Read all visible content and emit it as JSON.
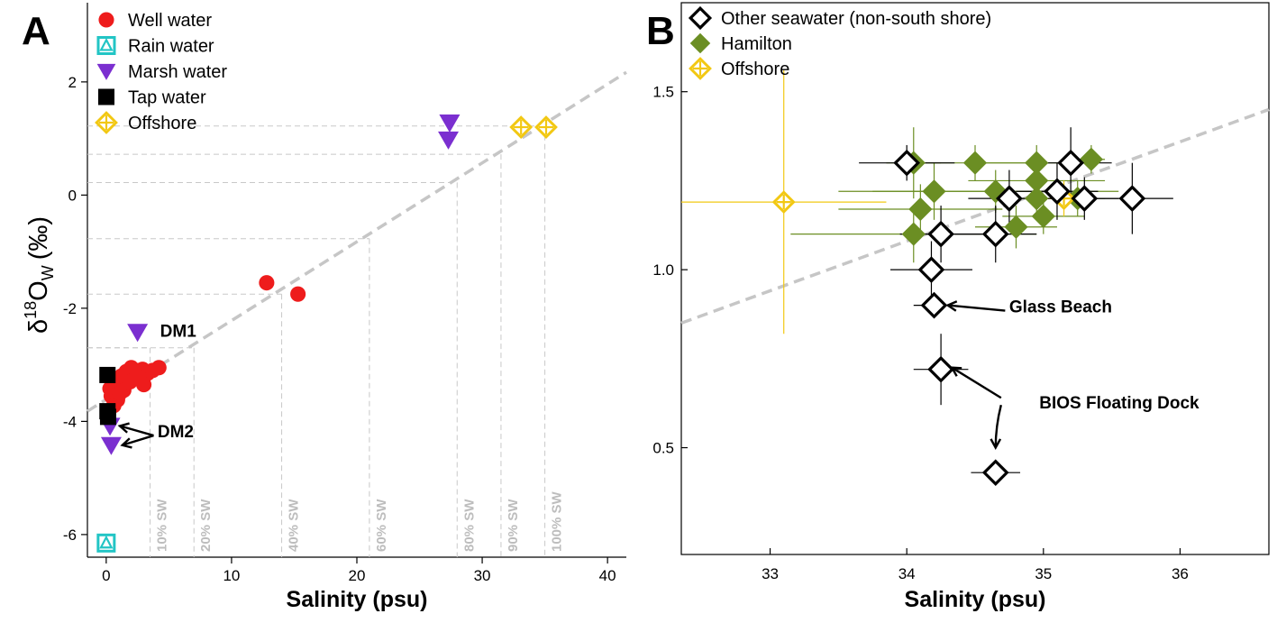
{
  "chart_data": [
    {
      "panel": "A",
      "type": "scatter",
      "xlabel": "Salinity (psu)",
      "ylabel_main": "δ",
      "ylabel_sup": "18",
      "ylabel_O": "O",
      "ylabel_sub": "W",
      "ylabel_unit": "(‰)",
      "xlim": [
        -1.5,
        41.5
      ],
      "ylim": [
        -6.4,
        3.4
      ],
      "xticks": [
        0,
        10,
        20,
        30,
        40
      ],
      "yticks": [
        -6,
        -4,
        -2,
        0,
        2
      ],
      "xtick_labels": [
        "0",
        "10",
        "20",
        "30",
        "40"
      ],
      "ytick_labels": [
        "-6",
        "-4",
        "-2",
        "0",
        "2"
      ],
      "mixing_line": {
        "x0": -1.5,
        "y0": -3.82,
        "x1": 41.5,
        "y1": 2.17
      },
      "sw_guides": [
        {
          "label": "10% SW",
          "x": 3.5,
          "y": -2.7
        },
        {
          "label": "20% SW",
          "x": 7.0,
          "y": -2.7
        },
        {
          "label": "40% SW",
          "x": 14.0,
          "y": -1.75
        },
        {
          "label": "60% SW",
          "x": 21.0,
          "y": -0.77
        },
        {
          "label": "80% SW",
          "x": 28.0,
          "y": 0.22
        },
        {
          "label": "90% SW",
          "x": 31.5,
          "y": 0.72
        },
        {
          "label": "100% SW",
          "x": 35.0,
          "y": 1.22
        }
      ],
      "series": [
        {
          "name": "Well water",
          "color": "#ee1c1c",
          "marker": "circle",
          "points": [
            [
              12.8,
              -1.55
            ],
            [
              15.3,
              -1.75
            ],
            [
              0.3,
              -3.42
            ],
            [
              0.8,
              -3.3
            ],
            [
              1.2,
              -3.2
            ],
            [
              1.6,
              -3.12
            ],
            [
              2.0,
              -3.05
            ],
            [
              2.4,
              -3.1
            ],
            [
              2.9,
              -3.08
            ],
            [
              3.3,
              -3.15
            ],
            [
              3.7,
              -3.1
            ],
            [
              4.2,
              -3.05
            ],
            [
              0.4,
              -3.55
            ],
            [
              0.9,
              -3.62
            ],
            [
              1.4,
              -3.45
            ],
            [
              1.9,
              -3.3
            ],
            [
              2.6,
              -3.22
            ],
            [
              3.0,
              -3.35
            ],
            [
              0.6,
              -3.72
            ],
            [
              1.1,
              -3.5
            ]
          ]
        },
        {
          "name": "Rain water",
          "color": "#22c5c5",
          "marker": "square-triangle",
          "points": [
            [
              0.0,
              -6.15
            ]
          ]
        },
        {
          "name": "Marsh water",
          "color": "#7b2fd0",
          "marker": "triangle-down",
          "points": [
            [
              27.4,
              1.28
            ],
            [
              27.3,
              0.98
            ],
            [
              2.5,
              -2.42
            ],
            [
              0.3,
              -4.08
            ],
            [
              0.4,
              -4.42
            ]
          ]
        },
        {
          "name": "Tap water",
          "color": "#000000",
          "marker": "square",
          "points": [
            [
              0.1,
              -3.18
            ],
            [
              0.1,
              -3.82
            ],
            [
              0.15,
              -3.92
            ]
          ]
        },
        {
          "name": "Offshore",
          "color": "#f2c813",
          "marker": "diamond-cross",
          "points": [
            [
              33.1,
              1.2
            ],
            [
              35.1,
              1.2
            ]
          ]
        }
      ],
      "annotations": [
        {
          "text": "DM1",
          "x": 4.3,
          "y": -2.5
        },
        {
          "text": "DM2",
          "x": 4.1,
          "y": -4.28
        }
      ]
    },
    {
      "panel": "B",
      "type": "scatter",
      "xlabel": "Salinity (psu)",
      "xlim": [
        32.35,
        36.65
      ],
      "ylim": [
        0.2,
        1.75
      ],
      "xticks": [
        33,
        34,
        35,
        36
      ],
      "yticks": [
        0.5,
        1.0,
        1.5
      ],
      "xtick_labels": [
        "33",
        "34",
        "35",
        "36"
      ],
      "ytick_labels": [
        "0.5",
        "1.0",
        "1.5"
      ],
      "mixing_line": {
        "x0": 32.35,
        "y0": 0.85,
        "x1": 36.65,
        "y1": 1.45
      },
      "series": [
        {
          "name": "Other seawater (non-south shore)",
          "color": "#000000",
          "marker": "diamond-open",
          "points": [
            {
              "x": 34.0,
              "y": 1.3,
              "xerr": 0.35,
              "yerr": 0.05
            },
            {
              "x": 35.2,
              "y": 1.3,
              "xerr": 0.3,
              "yerr": 0.1
            },
            {
              "x": 35.1,
              "y": 1.22,
              "xerr": 0.3,
              "yerr": 0.08
            },
            {
              "x": 34.75,
              "y": 1.2,
              "xerr": 0.3,
              "yerr": 0.08
            },
            {
              "x": 35.3,
              "y": 1.2,
              "xerr": 0.25,
              "yerr": 0.06
            },
            {
              "x": 35.65,
              "y": 1.2,
              "xerr": 0.3,
              "yerr": 0.1
            },
            {
              "x": 34.25,
              "y": 1.1,
              "xerr": 0.3,
              "yerr": 0.08
            },
            {
              "x": 34.65,
              "y": 1.1,
              "xerr": 0.3,
              "yerr": 0.08
            },
            {
              "x": 34.18,
              "y": 1.0,
              "xerr": 0.3,
              "yerr": 0.08
            },
            {
              "x": 34.2,
              "y": 0.9,
              "xerr": 0.15,
              "yerr": 0.03
            },
            {
              "x": 34.25,
              "y": 0.72,
              "xerr": 0.2,
              "yerr": 0.1
            },
            {
              "x": 34.65,
              "y": 0.43,
              "xerr": 0.18,
              "yerr": 0.01
            }
          ]
        },
        {
          "name": "Hamilton",
          "color": "#6b8e23",
          "marker": "diamond-filled",
          "points": [
            {
              "x": 34.05,
              "y": 1.3,
              "xerr": 0.2,
              "yerr": 0.1
            },
            {
              "x": 34.5,
              "y": 1.3,
              "xerr": 0.45,
              "yerr": 0.05
            },
            {
              "x": 34.95,
              "y": 1.3,
              "xerr": 0.4,
              "yerr": 0.05
            },
            {
              "x": 35.35,
              "y": 1.31,
              "xerr": 0.1,
              "yerr": 0.04
            },
            {
              "x": 34.2,
              "y": 1.22,
              "xerr": 0.7,
              "yerr": 0.08
            },
            {
              "x": 34.65,
              "y": 1.22,
              "xerr": 0.9,
              "yerr": 0.06
            },
            {
              "x": 34.95,
              "y": 1.25,
              "xerr": 0.5,
              "yerr": 0.05
            },
            {
              "x": 34.1,
              "y": 1.17,
              "xerr": 0.6,
              "yerr": 0.07
            },
            {
              "x": 34.8,
              "y": 1.12,
              "xerr": 0.3,
              "yerr": 0.06
            },
            {
              "x": 34.05,
              "y": 1.1,
              "xerr": 0.9,
              "yerr": 0.08
            },
            {
              "x": 35.25,
              "y": 1.2,
              "xerr": 0.2,
              "yerr": 0.05
            },
            {
              "x": 34.95,
              "y": 1.2,
              "xerr": 0.3,
              "yerr": 0.05
            },
            {
              "x": 35.0,
              "y": 1.15,
              "xerr": 0.3,
              "yerr": 0.05
            }
          ]
        },
        {
          "name": "Offshore",
          "color": "#f2c813",
          "marker": "diamond-cross",
          "points": [
            {
              "x": 33.1,
              "y": 1.19,
              "xerr": 0.75,
              "yerr": 0.37
            },
            {
              "x": 35.15,
              "y": 1.2,
              "xerr": 0.2,
              "yerr": 0.05
            }
          ]
        }
      ],
      "annotations": [
        {
          "text": "Glass Beach",
          "x": 34.75,
          "y": 0.88
        },
        {
          "text": "BIOS Floating Dock",
          "x": 34.97,
          "y": 0.61
        }
      ]
    }
  ]
}
